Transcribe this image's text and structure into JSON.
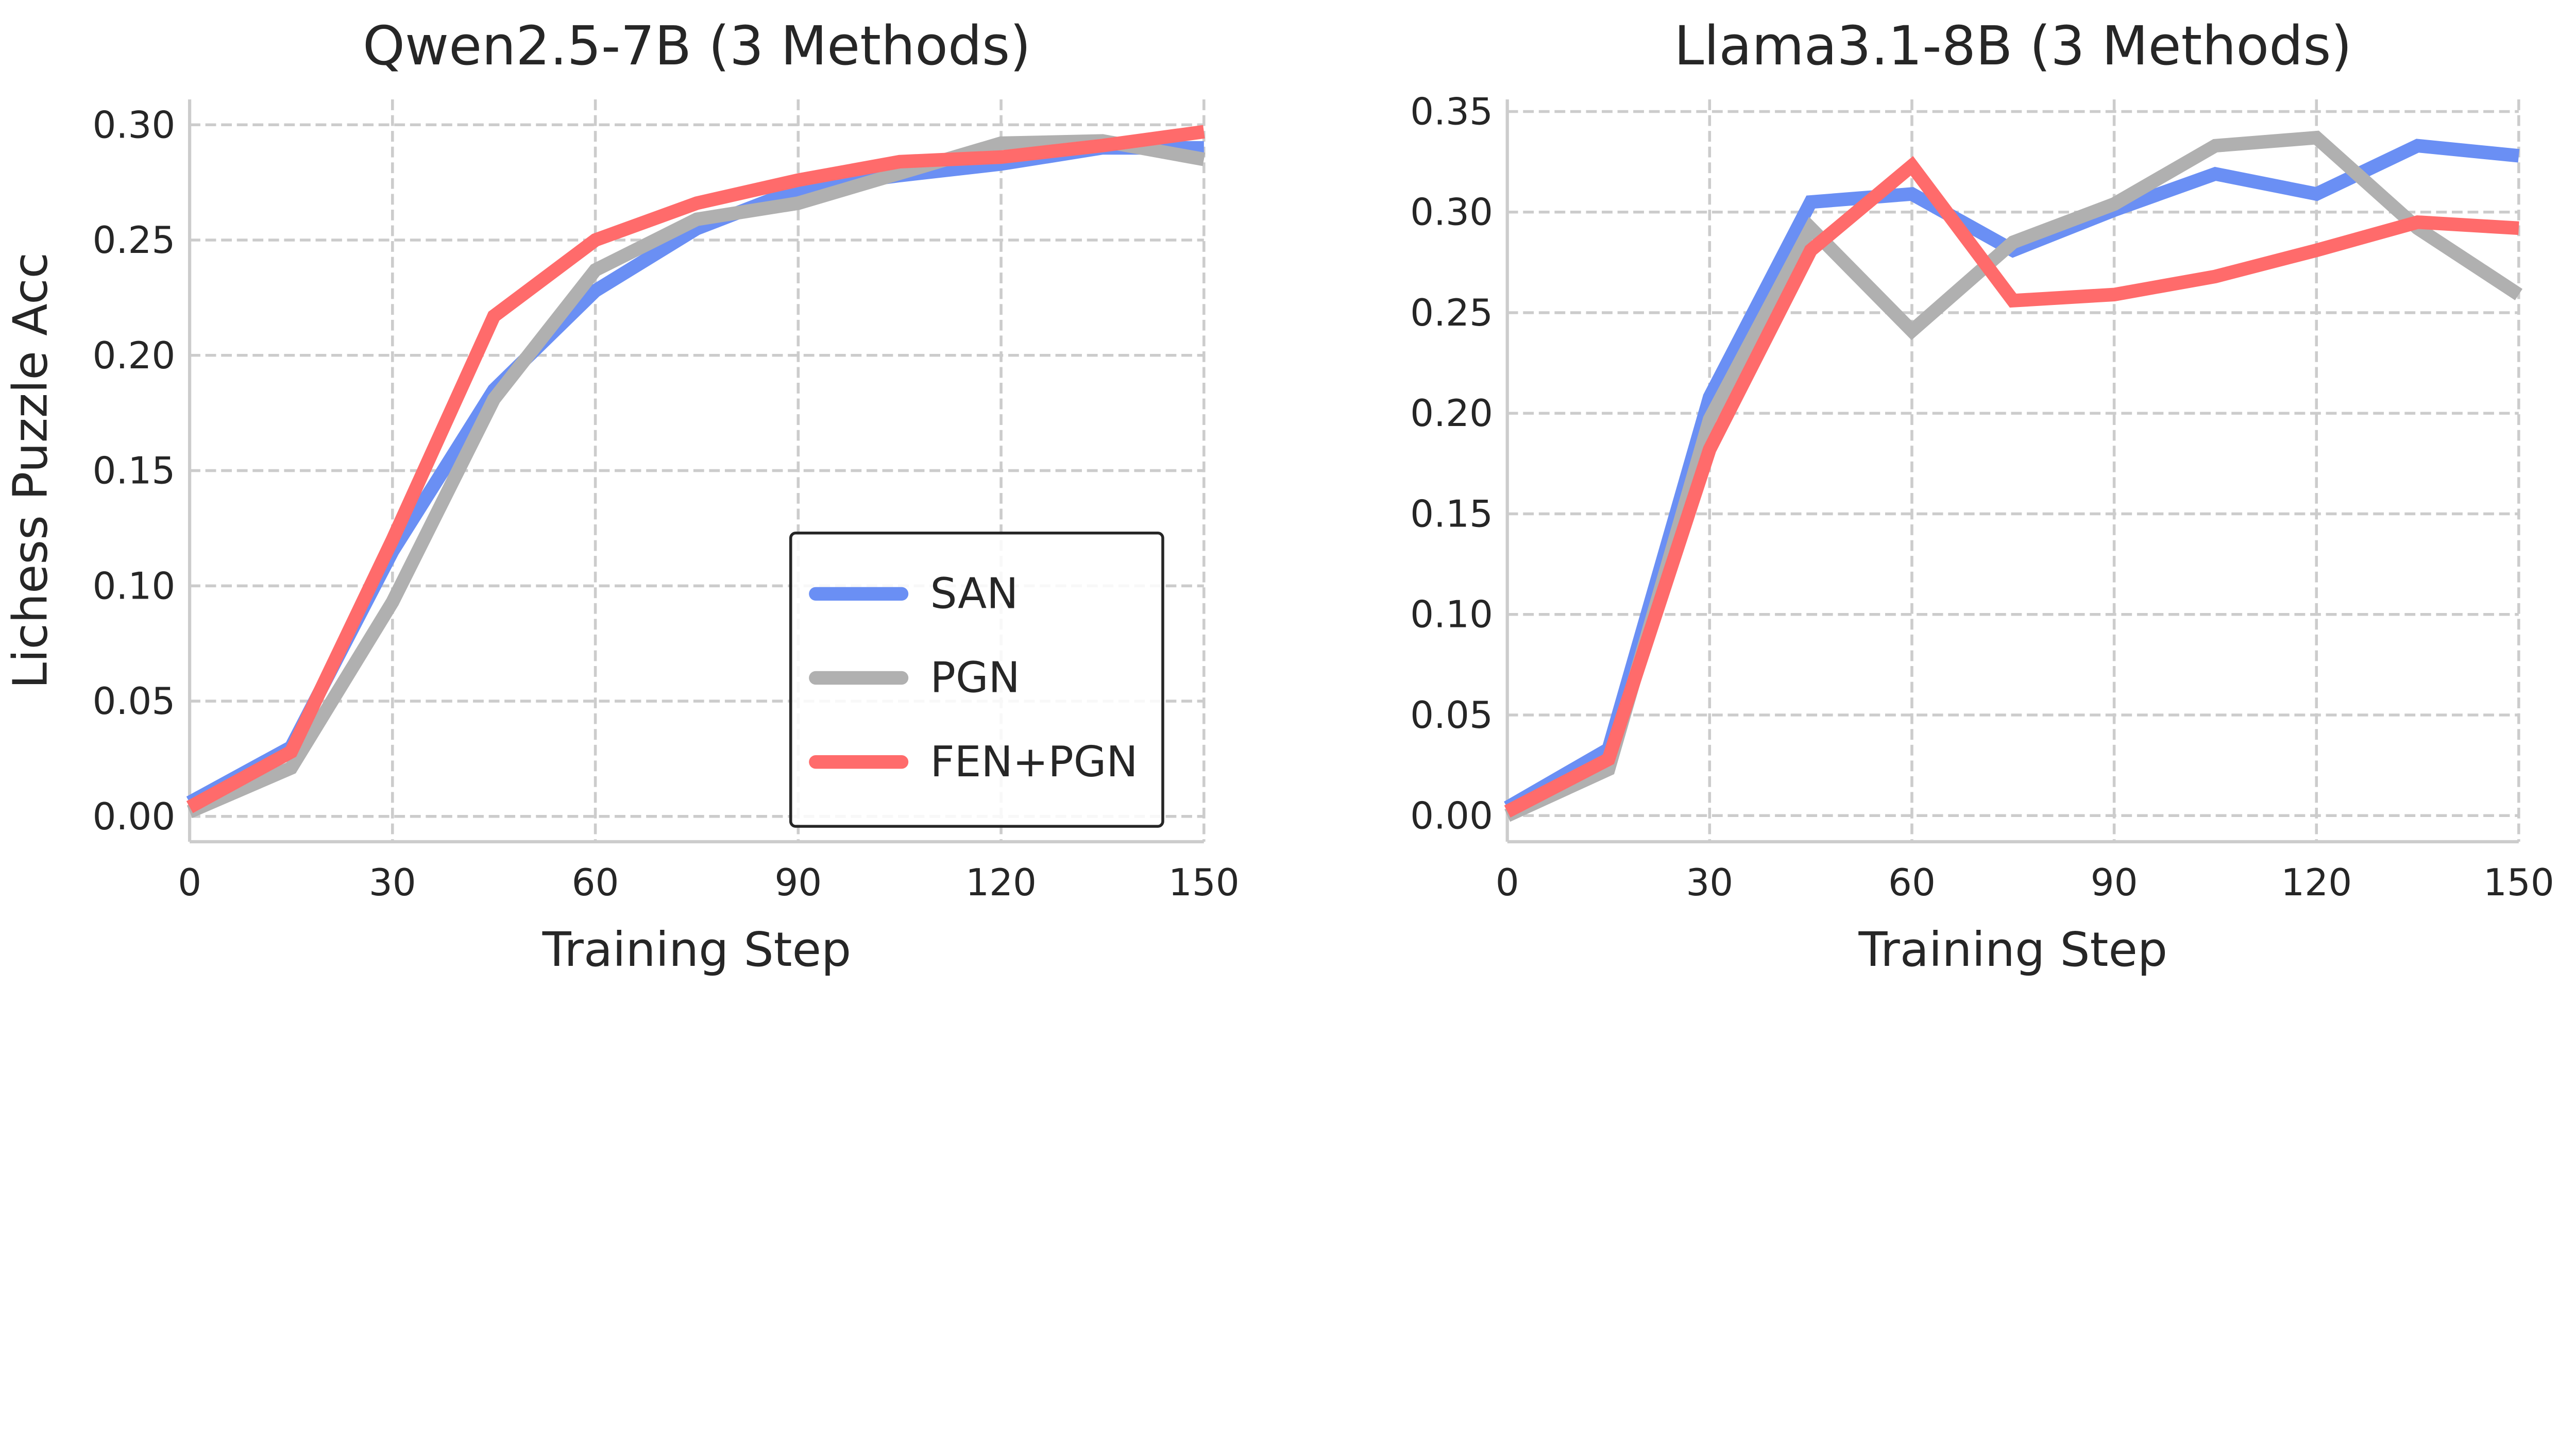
{
  "chart_data": [
    {
      "type": "line",
      "title": "Qwen2.5-7B (3 Methods)",
      "xlabel": "Training Step",
      "ylabel": "Lichess Puzzle Acc",
      "x": [
        0,
        15,
        30,
        45,
        60,
        75,
        90,
        105,
        120,
        135,
        150
      ],
      "xlim": [
        0,
        150
      ],
      "ylim": [
        -0.011,
        0.311
      ],
      "xticks": [
        0,
        30,
        60,
        90,
        120,
        150
      ],
      "yticks": [
        "0.00",
        "0.05",
        "0.10",
        "0.15",
        "0.20",
        "0.25",
        "0.30"
      ],
      "grid": true,
      "legend": "lower-right",
      "series": [
        {
          "name": "SAN",
          "color": "#6a8ff4",
          "values": [
            0.006,
            0.03,
            0.115,
            0.185,
            0.228,
            0.255,
            0.272,
            0.278,
            0.283,
            0.29,
            0.29
          ]
        },
        {
          "name": "PGN",
          "color": "#b0b0b0",
          "values": [
            0.002,
            0.021,
            0.093,
            0.181,
            0.237,
            0.259,
            0.266,
            0.279,
            0.292,
            0.293,
            0.285
          ]
        },
        {
          "name": "FEN+PGN",
          "color": "#ff6b6b",
          "values": [
            0.004,
            0.028,
            0.12,
            0.217,
            0.25,
            0.266,
            0.276,
            0.284,
            0.286,
            0.291,
            0.297
          ]
        }
      ]
    },
    {
      "type": "line",
      "title": "Llama3.1-8B (3 Methods)",
      "xlabel": "Training Step",
      "ylabel": "",
      "x": [
        0,
        15,
        30,
        45,
        60,
        75,
        90,
        105,
        120,
        135,
        150
      ],
      "xlim": [
        0,
        150
      ],
      "ylim": [
        -0.013,
        0.356
      ],
      "xticks": [
        0,
        30,
        60,
        90,
        120,
        150
      ],
      "yticks": [
        "0.00",
        "0.05",
        "0.10",
        "0.15",
        "0.20",
        "0.25",
        "0.30",
        "0.35"
      ],
      "grid": true,
      "legend": "none",
      "series": [
        {
          "name": "SAN",
          "color": "#6a8ff4",
          "values": [
            0.004,
            0.033,
            0.208,
            0.305,
            0.309,
            0.281,
            0.301,
            0.319,
            0.309,
            0.333,
            0.328
          ]
        },
        {
          "name": "PGN",
          "color": "#b0b0b0",
          "values": [
            0.0,
            0.023,
            0.197,
            0.292,
            0.241,
            0.285,
            0.304,
            0.333,
            0.337,
            0.292,
            0.259
          ]
        },
        {
          "name": "FEN+PGN",
          "color": "#ff6b6b",
          "values": [
            0.002,
            0.028,
            0.182,
            0.281,
            0.323,
            0.256,
            0.259,
            0.268,
            0.281,
            0.295,
            0.292
          ]
        }
      ]
    }
  ]
}
